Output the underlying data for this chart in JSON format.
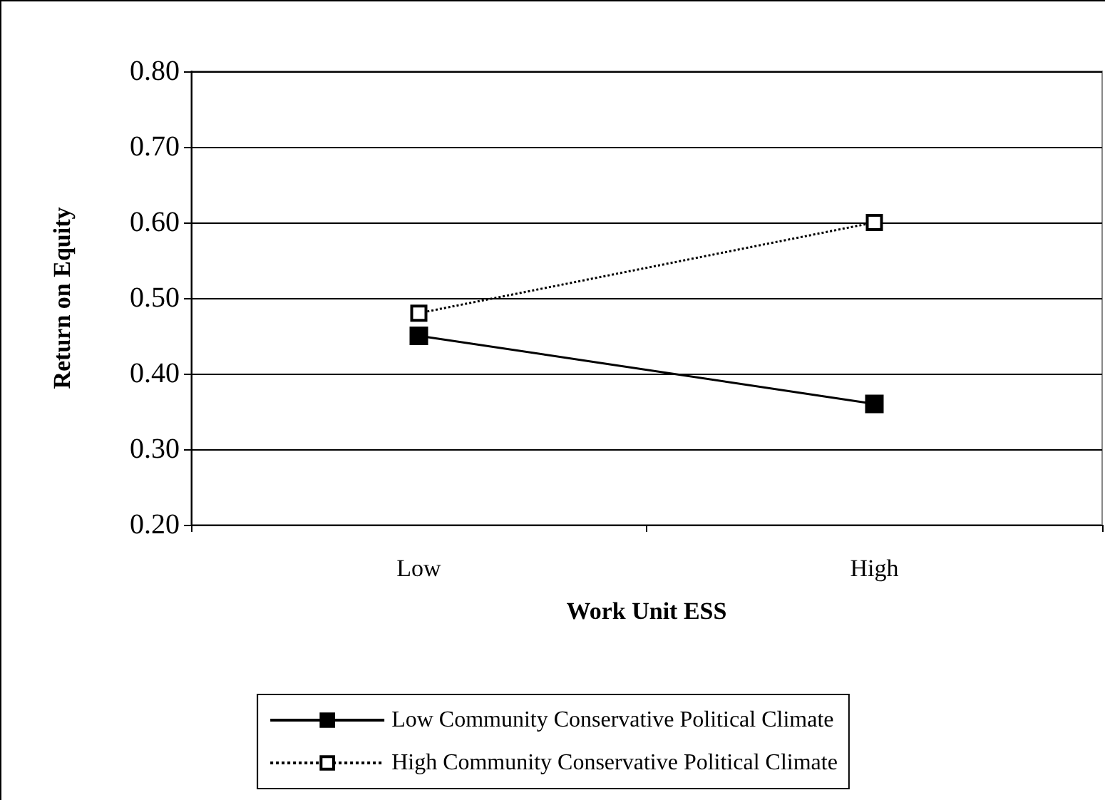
{
  "chart_data": {
    "type": "line",
    "xlabel": "Work Unit ESS",
    "ylabel": "Return on Equity",
    "categories": [
      "Low",
      "High"
    ],
    "series": [
      {
        "name": "Low Community Conservative Political Climate",
        "color": "#000000",
        "values": [
          0.45,
          0.36
        ],
        "line_style": "solid"
      },
      {
        "name": "High Community Conservative Political Climate",
        "color": "#000000",
        "values": [
          0.48,
          0.6
        ],
        "line_style": "dotted"
      }
    ],
    "ylim": [
      0.2,
      0.8
    ],
    "yticks": [
      {
        "value": 0.2,
        "label": "0.20"
      },
      {
        "value": 0.3,
        "label": "0.30"
      },
      {
        "value": 0.4,
        "label": "0.40"
      },
      {
        "value": 0.5,
        "label": "0.50"
      },
      {
        "value": 0.6,
        "label": "0.60"
      },
      {
        "value": 0.7,
        "label": "0.70"
      },
      {
        "value": 0.8,
        "label": "0.80"
      }
    ],
    "grid": "y",
    "legend": "bottom",
    "marker": "square"
  }
}
